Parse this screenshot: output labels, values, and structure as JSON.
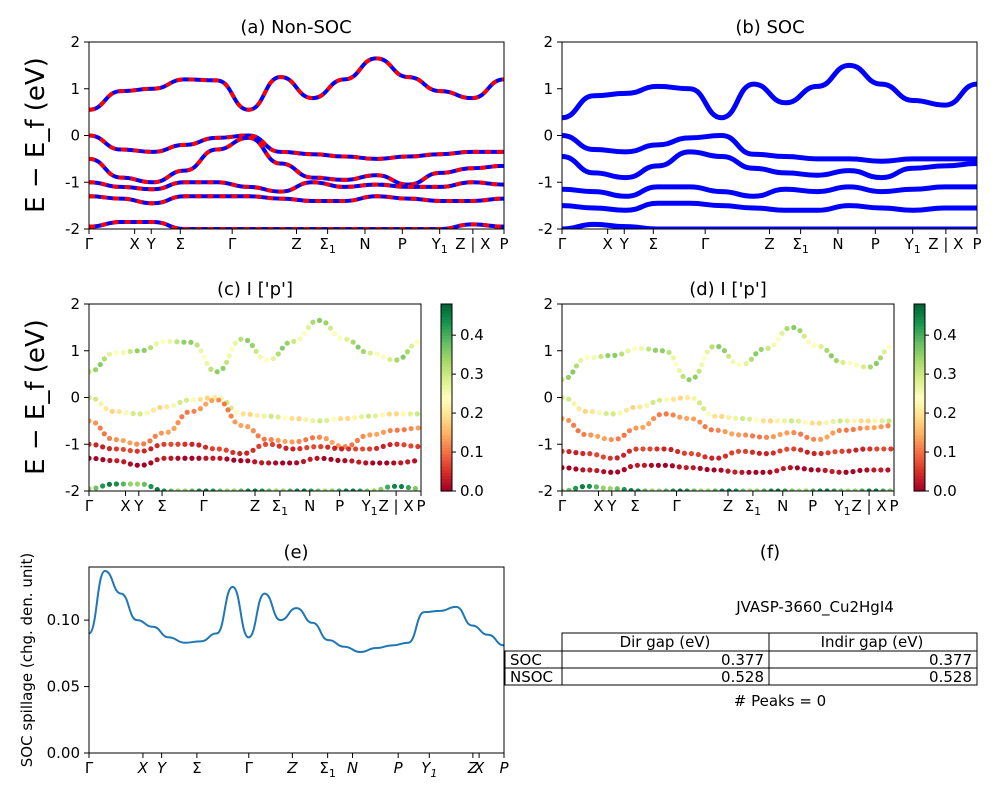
{
  "panels": {
    "a": {
      "title": "(a) Non-SOC"
    },
    "b": {
      "title": "(b) SOC"
    },
    "c": {
      "title": "(c)  I ['p']"
    },
    "d": {
      "title": "(d) I ['p']"
    },
    "e": {
      "title": "(e)"
    },
    "f": {
      "title": "(f)"
    }
  },
  "band_ylabel": "E − E_f (eV)",
  "kpath_labels": [
    "Γ",
    "X",
    "Y",
    "Σ",
    "Γ",
    "Z",
    "Σ1",
    "N",
    "P",
    "Y1",
    "Z | X",
    "P"
  ],
  "spillage_kpath_labels": [
    "Γ",
    "X",
    "Y",
    "Σ",
    "Γ",
    "Z",
    "Σ1",
    "N",
    "P",
    "Y1",
    "Z",
    "X",
    "P"
  ],
  "colorbar": {
    "ticks": [
      "0.0",
      "0.1",
      "0.2",
      "0.3",
      "0.4"
    ],
    "min": 0.0,
    "max": 0.48
  },
  "colors": {
    "nonsoc_a": "#0000ff",
    "nonsoc_b": "#ff0000",
    "soc": "#0000ff",
    "spillage": "#1f77b4"
  },
  "summary": {
    "material": "JVASP-3660_Cu2HgI4",
    "headers": [
      "Dir gap (eV)",
      "Indir gap (eV)"
    ],
    "rows": [
      {
        "label": "SOC",
        "dir": "0.377",
        "indir": "0.377"
      },
      {
        "label": "NSOC",
        "dir": "0.528",
        "indir": "0.528"
      }
    ],
    "peaks": "# Peaks = 0"
  },
  "chart_data": [
    {
      "type": "line",
      "title": "(a) Non-SOC",
      "ylabel": "E − E_f (eV)",
      "ylim": [
        -2,
        2
      ],
      "yticks": [
        -2,
        -1,
        0,
        1,
        2
      ],
      "x_ticks": [
        "Γ",
        "X",
        "Y",
        "Σ",
        "Γ",
        "Z",
        "Σ1",
        "N",
        "P",
        "Y1",
        "Z | X",
        "P"
      ],
      "series": [
        {
          "values": [
            0.55,
            0.95,
            1.0,
            1.2,
            1.18,
            0.55,
            1.25,
            0.8,
            1.2,
            1.65,
            1.25,
            0.95,
            0.8,
            1.2
          ]
        },
        {
          "values": [
            0.0,
            -0.3,
            -0.35,
            -0.2,
            -0.05,
            0.0,
            -0.35,
            -0.4,
            -0.45,
            -0.5,
            -0.45,
            -0.4,
            -0.35,
            -0.35
          ]
        },
        {
          "values": [
            -0.5,
            -0.9,
            -1.0,
            -0.75,
            -0.3,
            -0.05,
            -0.6,
            -0.9,
            -0.95,
            -0.85,
            -1.05,
            -0.8,
            -0.7,
            -0.65
          ]
        },
        {
          "values": [
            -1.0,
            -1.1,
            -1.15,
            -1.0,
            -1.0,
            -1.1,
            -1.2,
            -1.0,
            -1.1,
            -1.05,
            -1.1,
            -1.1,
            -1.0,
            -1.05
          ]
        },
        {
          "values": [
            -1.3,
            -1.35,
            -1.45,
            -1.3,
            -1.3,
            -1.3,
            -1.35,
            -1.4,
            -1.4,
            -1.3,
            -1.35,
            -1.4,
            -1.4,
            -1.35
          ]
        },
        {
          "values": [
            -1.95,
            -1.85,
            -1.85,
            -2.0,
            -2.0,
            -2.0,
            -2.0,
            -2.0,
            -2.0,
            -2.0,
            -2.0,
            -2.0,
            -1.9,
            -1.95
          ]
        }
      ]
    },
    {
      "type": "line",
      "title": "(b) SOC",
      "ylabel": "",
      "ylim": [
        -2,
        2
      ],
      "yticks": [
        -2,
        -1,
        0,
        1,
        2
      ],
      "x_ticks": [
        "Γ",
        "X",
        "Y",
        "Σ",
        "Γ",
        "Z",
        "Σ1",
        "N",
        "P",
        "Y1",
        "Z | X",
        "P"
      ],
      "series": [
        {
          "values": [
            0.38,
            0.85,
            0.9,
            1.05,
            1.0,
            0.38,
            1.1,
            0.7,
            1.05,
            1.5,
            1.1,
            0.75,
            0.65,
            1.1
          ]
        },
        {
          "values": [
            0.0,
            -0.3,
            -0.35,
            -0.2,
            -0.05,
            0.0,
            -0.4,
            -0.45,
            -0.5,
            -0.5,
            -0.55,
            -0.5,
            -0.5,
            -0.5
          ]
        },
        {
          "values": [
            -0.45,
            -0.8,
            -0.9,
            -0.65,
            -0.35,
            -0.45,
            -0.7,
            -0.8,
            -0.85,
            -0.75,
            -0.9,
            -0.7,
            -0.65,
            -0.6
          ]
        },
        {
          "values": [
            -1.15,
            -1.2,
            -1.3,
            -1.1,
            -1.1,
            -1.2,
            -1.3,
            -1.15,
            -1.2,
            -1.1,
            -1.2,
            -1.15,
            -1.1,
            -1.1
          ]
        },
        {
          "values": [
            -1.5,
            -1.55,
            -1.6,
            -1.45,
            -1.45,
            -1.5,
            -1.55,
            -1.6,
            -1.6,
            -1.5,
            -1.55,
            -1.6,
            -1.55,
            -1.55
          ]
        },
        {
          "values": [
            -2.0,
            -1.9,
            -1.95,
            -2.0,
            -2.0,
            -2.0,
            -2.0,
            -2.0,
            -2.0,
            -2.0,
            -2.0,
            -2.0,
            -2.0,
            -2.0
          ]
        }
      ]
    },
    {
      "type": "scatter",
      "title": "(c)  I ['p']",
      "ylabel": "E − E_f (eV)",
      "ylim": [
        -2,
        2
      ],
      "yticks": [
        -2,
        -1,
        0,
        1,
        2
      ],
      "x_ticks": [
        "Γ",
        "X",
        "Y",
        "Σ",
        "Γ",
        "Z",
        "Σ1",
        "N",
        "P",
        "Y1",
        "Z | X",
        "P"
      ],
      "colorbar": {
        "label": "",
        "range": [
          0.0,
          0.48
        ]
      },
      "series": [
        {
          "values": [
            0.55,
            0.95,
            1.0,
            1.2,
            1.18,
            0.55,
            1.25,
            0.8,
            1.2,
            1.65,
            1.25,
            0.95,
            0.8,
            1.2
          ],
          "weight": 0.3
        },
        {
          "values": [
            0.0,
            -0.3,
            -0.35,
            -0.2,
            -0.05,
            0.0,
            -0.35,
            -0.4,
            -0.45,
            -0.5,
            -0.45,
            -0.4,
            -0.35,
            -0.35
          ],
          "weight": 0.24
        },
        {
          "values": [
            -0.5,
            -0.9,
            -1.0,
            -0.75,
            -0.3,
            -0.05,
            -0.6,
            -0.9,
            -0.95,
            -0.85,
            -1.05,
            -0.8,
            -0.7,
            -0.65
          ],
          "weight": 0.12
        },
        {
          "values": [
            -1.0,
            -1.1,
            -1.15,
            -1.0,
            -1.0,
            -1.1,
            -1.2,
            -1.0,
            -1.1,
            -1.05,
            -1.1,
            -1.1,
            -1.0,
            -1.05
          ],
          "weight": 0.05
        },
        {
          "values": [
            -1.3,
            -1.35,
            -1.45,
            -1.3,
            -1.3,
            -1.3,
            -1.35,
            -1.4,
            -1.4,
            -1.3,
            -1.35,
            -1.4,
            -1.4,
            -1.35
          ],
          "weight": 0.01
        },
        {
          "values": [
            -1.95,
            -1.85,
            -1.85,
            -2.0,
            -2.0,
            -2.0,
            -2.0,
            -2.0,
            -2.0,
            -2.0,
            -2.0,
            -2.0,
            -1.9,
            -1.95
          ],
          "weight": 0.4
        }
      ]
    },
    {
      "type": "scatter",
      "title": "(d) I ['p']",
      "ylabel": "",
      "ylim": [
        -2,
        2
      ],
      "yticks": [
        -2,
        -1,
        0,
        1,
        2
      ],
      "x_ticks": [
        "Γ",
        "X",
        "Y",
        "Σ",
        "Γ",
        "Z",
        "Σ1",
        "N",
        "P",
        "Y1",
        "Z | X",
        "P"
      ],
      "colorbar": {
        "label": "",
        "range": [
          0.0,
          0.48
        ]
      },
      "series": [
        {
          "values": [
            0.38,
            0.85,
            0.9,
            1.05,
            1.0,
            0.38,
            1.1,
            0.7,
            1.05,
            1.5,
            1.1,
            0.75,
            0.65,
            1.1
          ],
          "weight": 0.3
        },
        {
          "values": [
            0.0,
            -0.3,
            -0.35,
            -0.2,
            -0.05,
            0.0,
            -0.4,
            -0.45,
            -0.5,
            -0.5,
            -0.55,
            -0.5,
            -0.5,
            -0.5
          ],
          "weight": 0.24
        },
        {
          "values": [
            -0.45,
            -0.8,
            -0.9,
            -0.65,
            -0.35,
            -0.45,
            -0.7,
            -0.8,
            -0.85,
            -0.75,
            -0.9,
            -0.7,
            -0.65,
            -0.6
          ],
          "weight": 0.12
        },
        {
          "values": [
            -1.15,
            -1.2,
            -1.3,
            -1.1,
            -1.1,
            -1.2,
            -1.3,
            -1.15,
            -1.2,
            -1.1,
            -1.2,
            -1.15,
            -1.1,
            -1.1
          ],
          "weight": 0.05
        },
        {
          "values": [
            -1.5,
            -1.55,
            -1.6,
            -1.45,
            -1.45,
            -1.5,
            -1.55,
            -1.6,
            -1.6,
            -1.5,
            -1.55,
            -1.6,
            -1.55,
            -1.55
          ],
          "weight": 0.01
        },
        {
          "values": [
            -2.0,
            -1.9,
            -1.95,
            -2.0,
            -2.0,
            -2.0,
            -2.0,
            -2.0,
            -2.0,
            -2.0,
            -2.0,
            -2.0,
            -2.0,
            -2.0
          ],
          "weight": 0.4
        }
      ]
    },
    {
      "type": "line",
      "title": "(e)",
      "ylabel": "SOC spillage (chg. den. unit)",
      "ylim": [
        0,
        0.14
      ],
      "yticks": [
        "0.00",
        "0.05",
        "0.10"
      ],
      "x_ticks": [
        "Γ",
        "X",
        "Y",
        "Σ",
        "Γ",
        "Z",
        "Σ1",
        "N",
        "P",
        "Y1",
        "Z",
        "X",
        "P"
      ],
      "series": [
        {
          "name": "",
          "values": [
            0.09,
            0.137,
            0.12,
            0.1,
            0.095,
            0.087,
            0.083,
            0.084,
            0.09,
            0.125,
            0.087,
            0.12,
            0.1,
            0.109,
            0.098,
            0.085,
            0.08,
            0.076,
            0.079,
            0.081,
            0.083,
            0.106,
            0.107,
            0.11,
            0.096,
            0.089,
            0.081
          ]
        }
      ]
    }
  ]
}
